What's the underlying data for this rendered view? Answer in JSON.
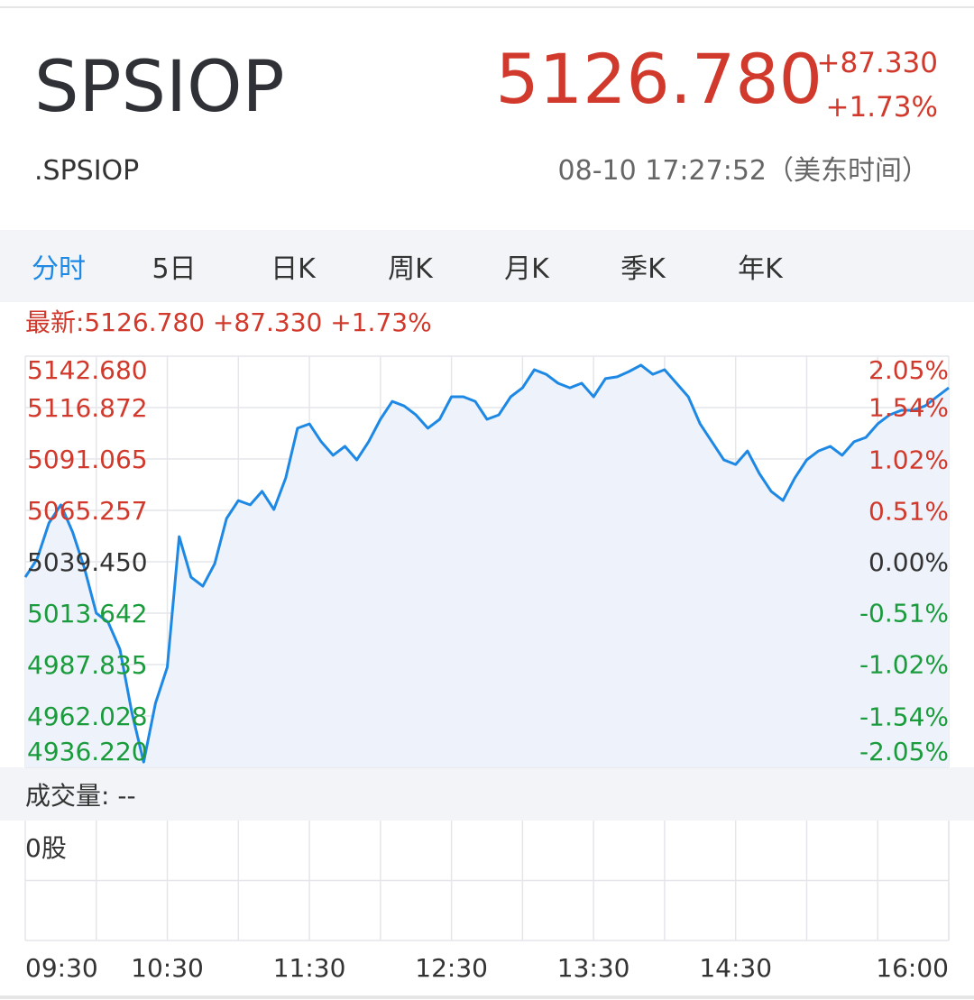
{
  "header": {
    "title": "SPSIOP",
    "code": ".SPSIOP",
    "price": "5126.780",
    "change": "+87.330",
    "change_pct": "+1.73%",
    "time": "08-10 17:27:52（美东时间）"
  },
  "tabs": [
    "分时",
    "5日",
    "日K",
    "周K",
    "月K",
    "季K",
    "年K"
  ],
  "latest": "最新:5126.780 +87.330 +1.73%",
  "chart_data": {
    "type": "line",
    "color": "#1e88e5",
    "up_color": "#d0392b",
    "down_color": "#1a9b3c",
    "flat_color": "#333333",
    "x": [
      "09:30",
      "09:35",
      "09:40",
      "09:45",
      "09:50",
      "09:55",
      "10:00",
      "10:05",
      "10:10",
      "10:15",
      "10:20",
      "10:25",
      "10:30",
      "10:35",
      "10:40",
      "10:45",
      "10:50",
      "10:55",
      "11:00",
      "11:05",
      "11:10",
      "11:15",
      "11:20",
      "11:25",
      "11:30",
      "11:35",
      "11:40",
      "11:45",
      "11:50",
      "11:55",
      "12:00",
      "12:05",
      "12:10",
      "12:15",
      "12:20",
      "12:25",
      "12:30",
      "12:35",
      "12:40",
      "12:45",
      "12:50",
      "12:55",
      "13:00",
      "13:05",
      "13:10",
      "13:15",
      "13:20",
      "13:25",
      "13:30",
      "13:35",
      "13:40",
      "13:45",
      "13:50",
      "13:55",
      "14:00",
      "14:05",
      "14:10",
      "14:15",
      "14:20",
      "14:25",
      "14:30",
      "14:35",
      "14:40",
      "14:45",
      "14:50",
      "14:55",
      "15:00",
      "15:05",
      "15:10",
      "15:15",
      "15:20",
      "15:25",
      "15:30",
      "15:35",
      "15:40",
      "15:45",
      "15:50",
      "15:55",
      "16:00"
    ],
    "values": [
      5031.7,
      5040.8,
      5058.9,
      5068.0,
      5054.4,
      5036.3,
      5013.6,
      5009.1,
      4995.5,
      4963.8,
      4938.9,
      4968.4,
      4986.5,
      5052.1,
      5031.7,
      5027.2,
      5038.5,
      5061.2,
      5070.2,
      5068.0,
      5074.8,
      5065.7,
      5081.5,
      5106.5,
      5108.7,
      5099.7,
      5092.9,
      5097.4,
      5090.6,
      5099.7,
      5111.0,
      5120.0,
      5117.7,
      5113.2,
      5106.5,
      5111.0,
      5122.3,
      5122.3,
      5120.0,
      5111.0,
      5113.2,
      5122.3,
      5126.8,
      5135.9,
      5133.6,
      5129.1,
      5126.8,
      5129.1,
      5122.3,
      5131.4,
      5132.3,
      5135.0,
      5138.2,
      5133.6,
      5135.9,
      5129.1,
      5122.3,
      5108.7,
      5099.7,
      5090.6,
      5088.3,
      5095.1,
      5083.8,
      5074.8,
      5070.2,
      5081.5,
      5090.6,
      5095.1,
      5097.4,
      5092.9,
      5099.7,
      5101.9,
      5108.7,
      5113.2,
      5115.5,
      5115.5,
      5117.7,
      5122.3,
      5126.8
    ],
    "xlim": [
      "09:30",
      "16:00"
    ],
    "xticks": [
      "09:30",
      "10:30",
      "11:30",
      "12:30",
      "13:30",
      "14:30",
      "16:00"
    ],
    "ylim": [
      4936.22,
      5142.68
    ],
    "yticks": [
      {
        "value": 5142.68,
        "label": "5142.680"
      },
      {
        "value": 5116.872,
        "label": "5116.872"
      },
      {
        "value": 5091.065,
        "label": "5091.065"
      },
      {
        "value": 5065.257,
        "label": "5065.257"
      },
      {
        "value": 5039.45,
        "label": "5039.450"
      },
      {
        "value": 5013.642,
        "label": "5013.642"
      },
      {
        "value": 4987.835,
        "label": "4987.835"
      },
      {
        "value": 4962.028,
        "label": "4962.028"
      },
      {
        "value": 4936.22,
        "label": "4936.220"
      }
    ],
    "y2lim": [
      -2.05,
      2.05
    ],
    "y2ticks": [
      {
        "value": 2.05,
        "label": "2.05%"
      },
      {
        "value": 1.54,
        "label": "1.54%"
      },
      {
        "value": 1.02,
        "label": "1.02%"
      },
      {
        "value": 0.51,
        "label": "0.51%"
      },
      {
        "value": 0,
        "label": "0.00%"
      },
      {
        "value": -0.51,
        "label": "-0.51%"
      },
      {
        "value": -1.02,
        "label": "-1.02%"
      },
      {
        "value": -1.54,
        "label": "-1.54%"
      },
      {
        "value": -2.05,
        "label": "-2.05%"
      }
    ],
    "grid": true,
    "volume_label": "成交量: --",
    "volume_tick": "0股"
  }
}
